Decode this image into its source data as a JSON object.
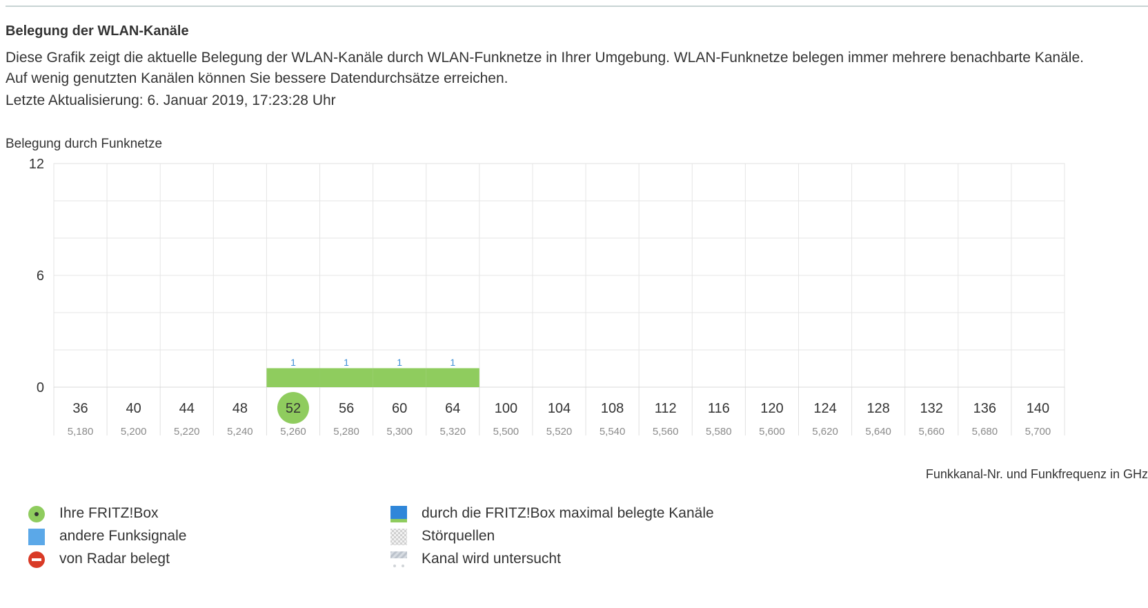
{
  "header": {
    "title": "Belegung der WLAN-Kanäle",
    "description_line1": "Diese Grafik zeigt die aktuelle Belegung der WLAN-Kanäle durch WLAN-Funknetze in Ihrer Umgebung. WLAN-Funknetze belegen immer mehrere benachbarte Kanäle.",
    "description_line2": "Auf wenig genutzten Kanälen können Sie bessere Datendurchsätze erreichen.",
    "last_update": "Letzte Aktualisierung: 6. Januar 2019, 17:23:28 Uhr"
  },
  "chart_data": {
    "type": "bar",
    "title": "Belegung durch Funknetze",
    "xlabel": "Funkkanal-Nr. und Funkfrequenz in GHz",
    "ylabel": "",
    "ylim": [
      0,
      12
    ],
    "yticks": [
      "0",
      "6",
      "12"
    ],
    "categories": [
      "36",
      "40",
      "44",
      "48",
      "52",
      "56",
      "60",
      "64",
      "100",
      "104",
      "108",
      "112",
      "116",
      "120",
      "124",
      "128",
      "132",
      "136",
      "140"
    ],
    "frequencies": [
      "5,180",
      "5,200",
      "5,220",
      "5,240",
      "5,260",
      "5,280",
      "5,300",
      "5,320",
      "5,500",
      "5,520",
      "5,540",
      "5,560",
      "5,580",
      "5,600",
      "5,620",
      "5,640",
      "5,660",
      "5,680",
      "5,700"
    ],
    "values": [
      0,
      0,
      0,
      0,
      1,
      1,
      1,
      1,
      0,
      0,
      0,
      0,
      0,
      0,
      0,
      0,
      0,
      0,
      0
    ],
    "own_channel": "52",
    "grid": true,
    "colors": {
      "bar": "#8fcc5e",
      "own_channel": "#8fcc5e",
      "value_label": "#3d8fd6",
      "grid": "#e5e5e5"
    }
  },
  "legend": [
    {
      "icon": "own-fritzbox-icon",
      "label": "Ihre FRITZ!Box"
    },
    {
      "icon": "other-signals-icon",
      "label": "andere Funksignale"
    },
    {
      "icon": "radar-icon",
      "label": "von Radar belegt"
    },
    {
      "icon": "max-channels-icon",
      "label": "durch die FRITZ!Box maximal belegte Kanäle"
    },
    {
      "icon": "interference-icon",
      "label": "Störquellen"
    },
    {
      "icon": "scanning-icon",
      "label": "Kanal wird untersucht"
    }
  ]
}
